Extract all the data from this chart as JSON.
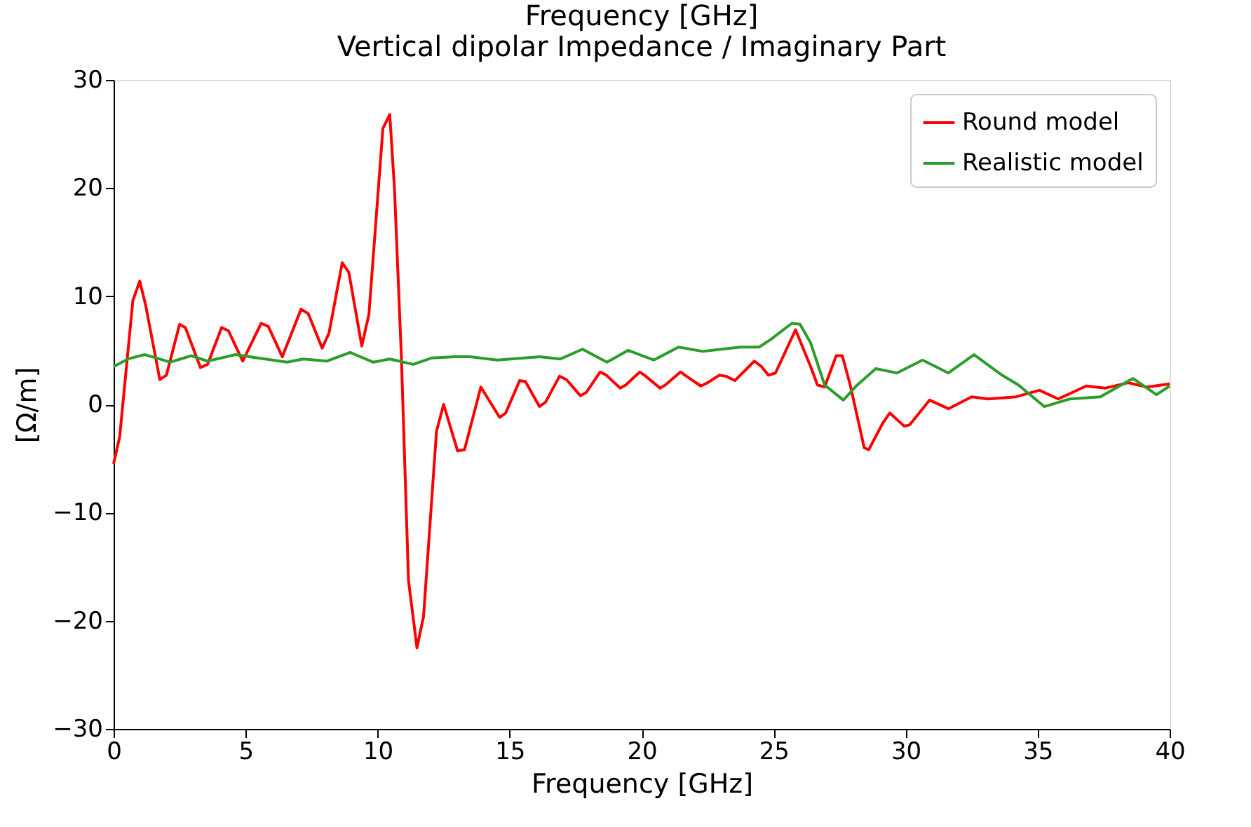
{
  "chart_data": {
    "type": "line",
    "title": "Vertical dipolar Impedance / Imaginary Part",
    "annotations": [
      "Frequency [GHz]"
    ],
    "xlabel": "Frequency [GHz]",
    "ylabel": "[Ω/m]",
    "xlim": [
      0,
      40
    ],
    "ylim": [
      -30,
      30
    ],
    "xticks": [
      0,
      5,
      10,
      15,
      20,
      25,
      30,
      35,
      40
    ],
    "yticks": [
      -30,
      -20,
      -10,
      0,
      10,
      20,
      30
    ],
    "grid": false,
    "legend": "top right",
    "line_style": "solid",
    "marker": "none",
    "series": [
      {
        "name": "Round model",
        "color": "#ff0000",
        "x": [
          0,
          0.23,
          0.73,
          0.99,
          1.22,
          1.75,
          2.0,
          2.5,
          2.72,
          3.29,
          3.56,
          4.09,
          4.35,
          4.89,
          5.59,
          5.86,
          6.39,
          7.1,
          7.37,
          7.9,
          8.16,
          8.66,
          8.91,
          9.4,
          9.67,
          10.2,
          10.46,
          10.64,
          10.9,
          11.17,
          11.49,
          11.74,
          12.23,
          12.5,
          13.03,
          13.29,
          13.91,
          14.62,
          14.85,
          15.38,
          15.6,
          16.13,
          16.36,
          16.89,
          17.15,
          17.68,
          17.9,
          18.43,
          18.66,
          19.19,
          19.4,
          19.93,
          20.16,
          20.7,
          20.9,
          21.47,
          21.7,
          22.24,
          22.5,
          22.94,
          23.2,
          23.53,
          24.27,
          24.54,
          24.8,
          25.07,
          25.83,
          26.4,
          26.66,
          26.93,
          27.37,
          27.6,
          27.9,
          28.43,
          28.6,
          29.14,
          29.4,
          29.94,
          30.15,
          30.91,
          31.62,
          32.5,
          33.12,
          34.18,
          35.07,
          35.78,
          36.84,
          37.55,
          38.43,
          39.14,
          40.0
        ],
        "values": [
          -5.5,
          -3.0,
          9.6,
          11.4,
          9.1,
          2.3,
          2.7,
          7.4,
          7.1,
          3.4,
          3.7,
          7.1,
          6.8,
          4.0,
          7.5,
          7.2,
          4.4,
          8.8,
          8.4,
          5.2,
          6.6,
          13.1,
          12.2,
          5.4,
          8.3,
          25.5,
          26.8,
          19.9,
          4.4,
          -16.3,
          -22.5,
          -19.6,
          -2.5,
          0,
          -4.3,
          -4.2,
          1.6,
          -1.2,
          -0.8,
          2.2,
          2.1,
          -0.2,
          0.2,
          2.6,
          2.3,
          0.8,
          1.1,
          3.0,
          2.7,
          1.5,
          1.8,
          3.0,
          2.6,
          1.5,
          1.8,
          3.0,
          2.6,
          1.7,
          2.0,
          2.7,
          2.6,
          2.2,
          4.0,
          3.5,
          2.7,
          2.9,
          6.9,
          3.5,
          1.8,
          1.6,
          4.5,
          4.5,
          1.8,
          -4.0,
          -4.2,
          -1.7,
          -0.8,
          -2.0,
          -1.9,
          0.4,
          -0.4,
          0.7,
          0.5,
          0.7,
          1.3,
          0.5,
          1.7,
          1.5,
          2.0,
          1.6,
          1.9
        ]
      },
      {
        "name": "Realistic model",
        "color": "#2a9d2a",
        "x": [
          0,
          0.55,
          1.17,
          1.61,
          2.14,
          2.94,
          3.56,
          4.62,
          5.15,
          6.57,
          7.19,
          8.07,
          8.96,
          9.84,
          10.46,
          11.35,
          12.06,
          12.94,
          13.5,
          14.53,
          16.13,
          16.92,
          17.76,
          18.69,
          19.49,
          20.46,
          21.4,
          22.32,
          23.74,
          24.45,
          24.89,
          25.69,
          26.0,
          26.4,
          26.93,
          27.64,
          28.17,
          28.87,
          29.67,
          30.64,
          31.62,
          32.59,
          33.65,
          34.27,
          35.25,
          36.22,
          37.37,
          38.61,
          39.5,
          40.0
        ],
        "values": [
          3.5,
          4.2,
          4.6,
          4.3,
          3.9,
          4.5,
          4.0,
          4.6,
          4.4,
          3.9,
          4.2,
          4.0,
          4.8,
          3.9,
          4.2,
          3.7,
          4.3,
          4.4,
          4.4,
          4.1,
          4.4,
          4.2,
          5.1,
          3.9,
          5.0,
          4.1,
          5.3,
          4.9,
          5.3,
          5.3,
          6.0,
          7.5,
          7.4,
          5.7,
          1.8,
          0.4,
          1.8,
          3.3,
          2.9,
          4.1,
          2.9,
          4.6,
          2.7,
          1.8,
          -0.2,
          0.5,
          0.7,
          2.4,
          0.9,
          1.7
        ]
      }
    ]
  }
}
